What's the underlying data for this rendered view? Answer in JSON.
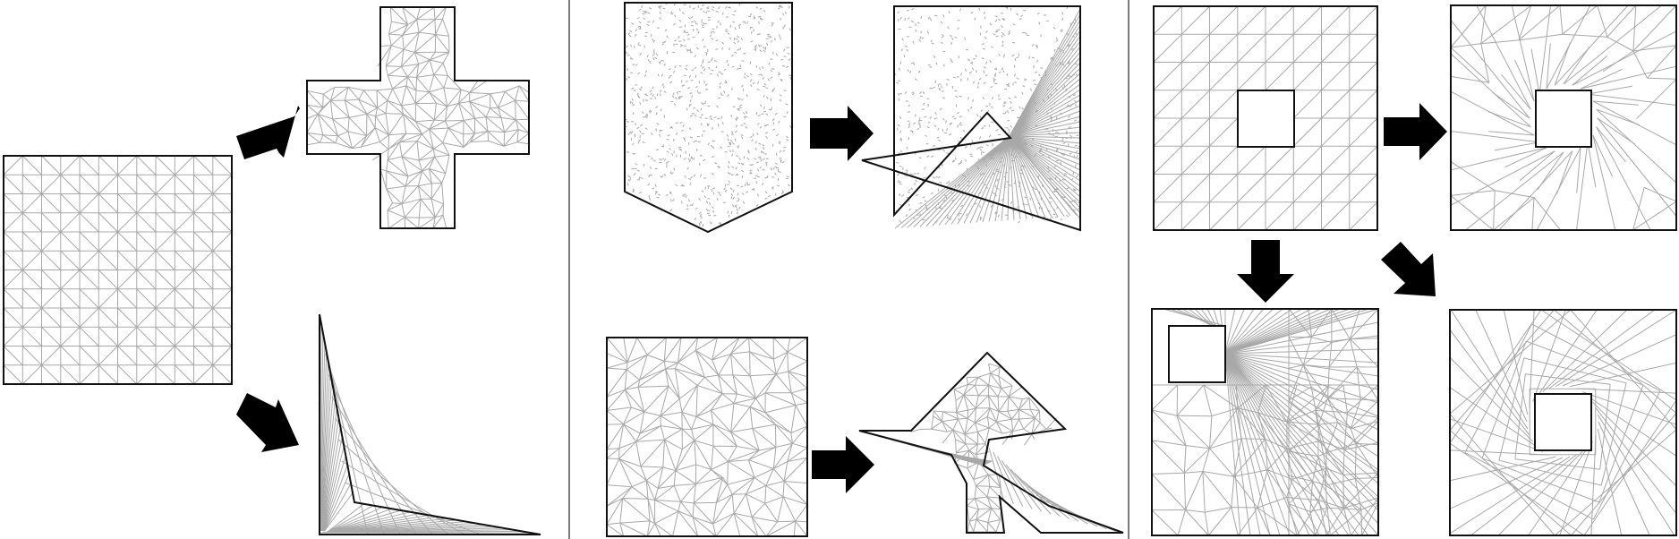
{
  "colors": {
    "background": "#ffffff",
    "mesh_edge": "#a8a8a8",
    "boundary": "#111111",
    "arrow": "#000000",
    "divider": "#222222"
  },
  "panels": [
    {
      "name": "panel-left",
      "source": "square-uniform-mesh",
      "targets": [
        "cross-shape-mesh",
        "l-shape-mesh"
      ]
    },
    {
      "name": "panel-middle",
      "source": [
        "pentagon-dense-mesh",
        "square-random-mesh"
      ],
      "targets": [
        "self-overlapping-triangle-mesh",
        "arrow-shape-mesh"
      ]
    },
    {
      "name": "panel-right",
      "source": "square-with-hole-mesh",
      "targets": [
        "hole-rotated-mesh",
        "hole-moved-corner-mesh",
        "hole-twisted-mesh"
      ]
    }
  ]
}
